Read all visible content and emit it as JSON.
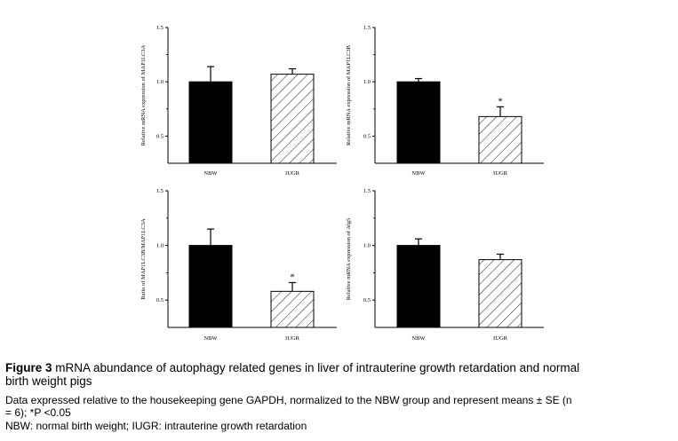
{
  "chart_data": [
    {
      "type": "bar",
      "categories": [
        "NBW",
        "IUGR"
      ],
      "values": [
        1.0,
        1.07
      ],
      "errors": [
        0.14,
        0.05
      ],
      "significance": [
        "",
        ""
      ],
      "ylabel": "Relative mRNA expression of MAP1LC3A",
      "ylim": [
        0.25,
        1.5
      ],
      "yticks": [
        "1.5",
        "1.0",
        "0.5"
      ]
    },
    {
      "type": "bar",
      "categories": [
        "NBW",
        "IUGR"
      ],
      "values": [
        1.0,
        0.68
      ],
      "errors": [
        0.03,
        0.09
      ],
      "significance": [
        "",
        "*"
      ],
      "ylabel": "Relative mRNA expression of MAP1LC3B",
      "ylim": [
        0.25,
        1.5
      ],
      "yticks": [
        "1.5",
        "1.0",
        "0.5"
      ]
    },
    {
      "type": "bar",
      "categories": [
        "NBW",
        "IUGR"
      ],
      "values": [
        1.0,
        0.58
      ],
      "errors": [
        0.15,
        0.08
      ],
      "significance": [
        "",
        "*"
      ],
      "ylabel": "Ratio of MAP1LC3B/MAP1LC3A",
      "ylim": [
        0.25,
        1.5
      ],
      "yticks": [
        "1.5",
        "1.0",
        "0.5"
      ]
    },
    {
      "type": "bar",
      "categories": [
        "NBW",
        "IUGR"
      ],
      "values": [
        1.0,
        0.87
      ],
      "errors": [
        0.06,
        0.05
      ],
      "significance": [
        "",
        ""
      ],
      "ylabel": "Relative mRNA expression of Atg5",
      "ylim": [
        0.25,
        1.5
      ],
      "yticks": [
        "1.5",
        "1.0",
        "0.5"
      ]
    }
  ],
  "caption": {
    "figure_label": "Figure 3",
    "title_line1": " mRNA abundance of autophagy related genes in liver of intrauterine growth retardation and normal",
    "title_line2": "birth weight pigs",
    "data_line1": "Data expressed relative to the housekeeping gene GAPDH, normalized to the NBW group and represent means ± SE (n",
    "data_line2": "= 6); *P <0.05",
    "abbr_line": "NBW: normal birth weight; IUGR: intrauterine growth retardation"
  },
  "colors": {
    "nbw_fill": "#000000",
    "iugr_fill": "hatched",
    "axis": "#000000"
  }
}
